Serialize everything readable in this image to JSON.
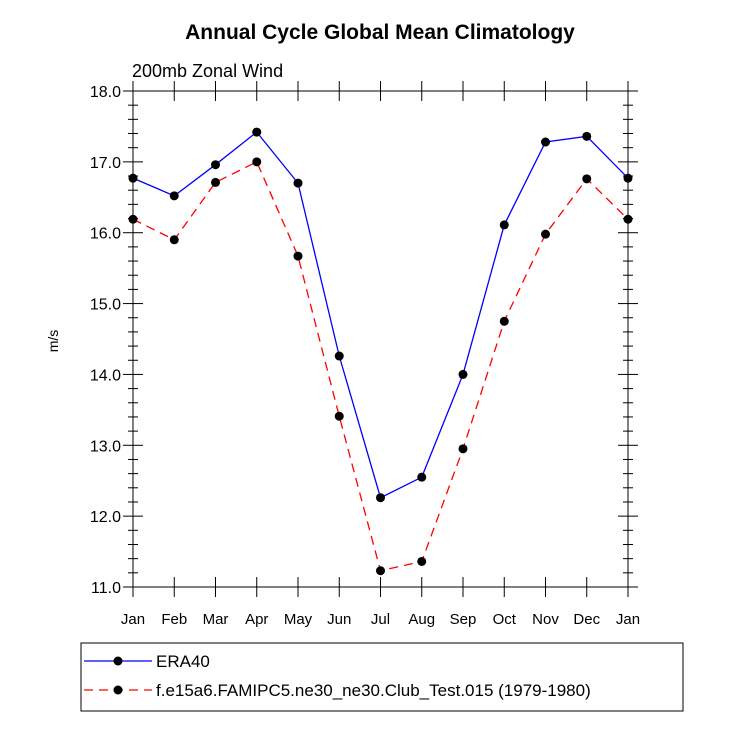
{
  "chart_data": {
    "type": "line",
    "title": "Annual Cycle Global Mean Climatology",
    "subtitle": "200mb Zonal Wind",
    "xlabel": "",
    "ylabel": "m/s",
    "categories": [
      "Jan",
      "Feb",
      "Mar",
      "Apr",
      "May",
      "Jun",
      "Jul",
      "Aug",
      "Sep",
      "Oct",
      "Nov",
      "Dec",
      "Jan"
    ],
    "ylim": [
      11.0,
      18.0
    ],
    "yticks": [
      "11.0",
      "12.0",
      "13.0",
      "14.0",
      "15.0",
      "16.0",
      "17.0",
      "18.0"
    ],
    "grid": false,
    "legend_position": "bottom",
    "series": [
      {
        "name": "ERA40",
        "color": "#0000ff",
        "dash": "solid",
        "marker": "filled-circle",
        "values": [
          16.77,
          16.52,
          16.96,
          17.42,
          16.7,
          14.26,
          12.26,
          12.55,
          14.0,
          16.11,
          17.28,
          17.36,
          16.77
        ]
      },
      {
        "name": "f.e15a6.FAMIPC5.ne30_ne30.Club_Test.015 (1979-1980)",
        "color": "#ff0000",
        "dash": "dashed",
        "marker": "filled-circle",
        "values": [
          16.19,
          15.9,
          16.71,
          17.0,
          15.67,
          13.41,
          11.23,
          11.36,
          12.95,
          14.75,
          15.98,
          16.76,
          16.19
        ]
      }
    ]
  }
}
